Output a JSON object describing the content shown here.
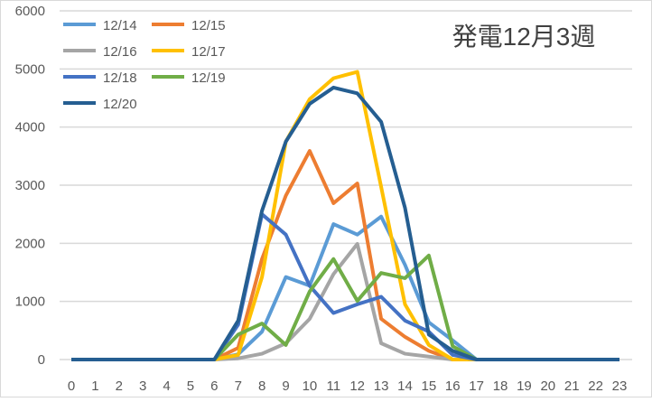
{
  "chart_data": {
    "type": "line",
    "title": "発電12月3週",
    "xlabel": "",
    "ylabel": "",
    "x": [
      0,
      1,
      2,
      3,
      4,
      5,
      6,
      7,
      8,
      9,
      10,
      11,
      12,
      13,
      14,
      15,
      16,
      17,
      18,
      19,
      20,
      21,
      22,
      23
    ],
    "ylim": [
      0,
      6000
    ],
    "yticks": [
      0,
      1000,
      2000,
      3000,
      4000,
      5000,
      6000
    ],
    "grid": true,
    "legend_position": "top-left",
    "series": [
      {
        "name": "12/14",
        "color": "#5B9BD5",
        "values": [
          0,
          0,
          0,
          0,
          0,
          0,
          0,
          90,
          480,
          1420,
          1270,
          2330,
          2150,
          2460,
          1630,
          640,
          330,
          0,
          0,
          0,
          0,
          0,
          0,
          0
        ]
      },
      {
        "name": "12/15",
        "color": "#ED7D31",
        "values": [
          0,
          0,
          0,
          0,
          0,
          0,
          0,
          200,
          1730,
          2820,
          3590,
          2690,
          3030,
          700,
          390,
          150,
          0,
          0,
          0,
          0,
          0,
          0,
          0,
          0
        ]
      },
      {
        "name": "12/16",
        "color": "#A5A5A5",
        "values": [
          0,
          0,
          0,
          0,
          0,
          0,
          0,
          20,
          100,
          280,
          700,
          1470,
          1990,
          280,
          100,
          50,
          0,
          0,
          0,
          0,
          0,
          0,
          0,
          0
        ]
      },
      {
        "name": "12/17",
        "color": "#FFC000",
        "values": [
          0,
          0,
          0,
          0,
          0,
          0,
          0,
          80,
          1420,
          3750,
          4480,
          4840,
          4950,
          2970,
          950,
          250,
          0,
          0,
          0,
          0,
          0,
          0,
          0,
          0
        ]
      },
      {
        "name": "12/18",
        "color": "#4472C4",
        "values": [
          0,
          0,
          0,
          0,
          0,
          0,
          0,
          600,
          2500,
          2150,
          1270,
          800,
          950,
          1080,
          670,
          480,
          80,
          0,
          0,
          0,
          0,
          0,
          0,
          0
        ]
      },
      {
        "name": "12/19",
        "color": "#70AD47",
        "values": [
          0,
          0,
          0,
          0,
          0,
          0,
          0,
          430,
          620,
          250,
          1170,
          1730,
          1010,
          1490,
          1400,
          1790,
          230,
          0,
          0,
          0,
          0,
          0,
          0,
          0
        ]
      },
      {
        "name": "12/20",
        "color": "#255E91",
        "values": [
          0,
          0,
          0,
          0,
          0,
          0,
          0,
          670,
          2560,
          3750,
          4400,
          4680,
          4580,
          4090,
          2610,
          430,
          150,
          0,
          0,
          0,
          0,
          0,
          0,
          0
        ]
      }
    ]
  }
}
